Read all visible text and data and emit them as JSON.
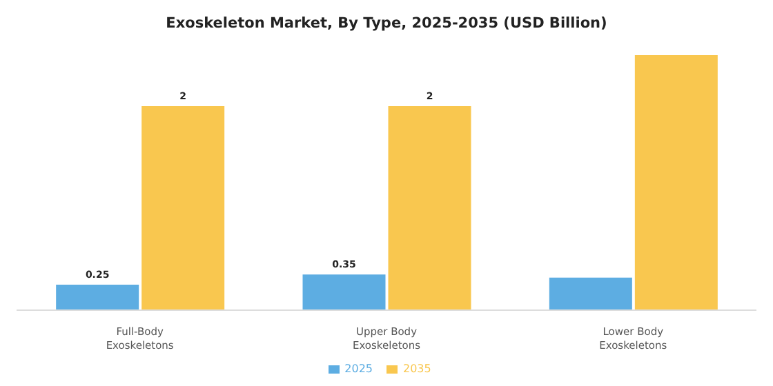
{
  "chart_data": {
    "type": "bar",
    "title": "Exoskeleton Market, By Type, 2025-2035 (USD Billion)",
    "categories": [
      "Full-Body Exoskeletons",
      "Upper Body Exoskeletons",
      "Lower Body Exoskeletons"
    ],
    "series": [
      {
        "name": "2025",
        "color": "#5dade2",
        "values": [
          0.25,
          0.35,
          0.32
        ],
        "value_labels": [
          "0.25",
          "0.35",
          null
        ]
      },
      {
        "name": "2035",
        "color": "#f9c74f",
        "values": [
          2,
          2,
          2.5
        ],
        "value_labels": [
          "2",
          "2",
          null
        ]
      }
    ],
    "legend": "bottom",
    "grid": false
  }
}
